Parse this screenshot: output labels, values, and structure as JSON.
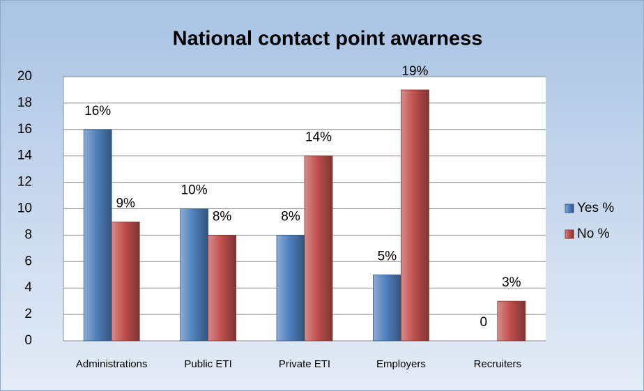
{
  "chart_data": {
    "type": "bar",
    "title": "National contact point awarness",
    "categories": [
      "Administrations",
      "Public ETI",
      "Private ETI",
      "Employers",
      "Recruiters"
    ],
    "series": [
      {
        "name": "Yes %",
        "color": "#4f81bd",
        "values": [
          16,
          10,
          8,
          5,
          0
        ],
        "value_labels": [
          "16%",
          "10%",
          "8%",
          "5%",
          "0"
        ]
      },
      {
        "name": "No %",
        "color": "#c0504d",
        "values": [
          9,
          8,
          14,
          19,
          3
        ],
        "value_labels": [
          "9%",
          "8%",
          "14%",
          "19%",
          "3%"
        ]
      }
    ],
    "ylim": [
      0,
      20
    ],
    "yticks": [
      0,
      2,
      4,
      6,
      8,
      10,
      12,
      14,
      16,
      18,
      20
    ],
    "grid": true,
    "legend": "right"
  }
}
